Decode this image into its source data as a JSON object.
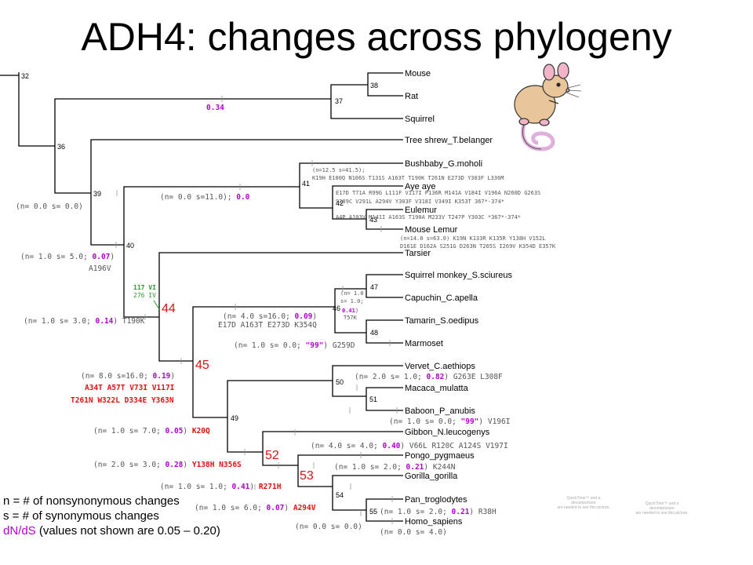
{
  "title": "ADH4:  changes across phylogeny",
  "taxa": [
    "Mouse",
    "Rat",
    "Squirrel",
    "Tree shrew_T.belanger",
    "Bushbaby_G.moholi",
    "Aye aye",
    "Eulemur",
    "Mouse Lemur",
    "Tarsier",
    "Squirrel monkey_S.sciureus",
    "Capuchin_C.apella",
    "Tamarin_S.oedipus",
    "Marmoset",
    "Vervet_C.aethiops",
    "Macaca_mulatta",
    "Baboon_P_anubis",
    "Gibbon_N.leucogenys",
    "Pongo_pygmaeus",
    "Gorilla_gorilla",
    "Pan_troglodytes",
    "Homo_sapiens"
  ],
  "nodes": [
    "32",
    "36",
    "37",
    "38",
    "39",
    "40",
    "41",
    "42",
    "43",
    "44",
    "45",
    "46",
    "47",
    "48",
    "49",
    "50",
    "51",
    "52",
    "53",
    "54",
    "55"
  ],
  "annotations": {
    "a034": "0.34",
    "a39": "(n= 0.0 s= 0.0)",
    "a40_pre": "(n= 1.0 s= 5.0; ",
    "a40_val": "0.07",
    "a40_post": ")",
    "a40_mut": "A196V",
    "a_strep_pre": "(n= 0.0 s=11.0); ",
    "a_strep_val": "0.0",
    "a_bush1": "(n=12.5 s=41.5);",
    "a_bush2": "K19H E100Q N106S T131S A163T T190K T261N E273D Y303F L336M",
    "a_aye": "E17D T71A R99G L111F V117I P136R M141A V184I V196A N260D G263S",
    "a_eul": "S289C V291L A294V Y303F V318I V349I K353T 367*-374*",
    "a_ml": "A4P A103V M141I A163S T190A M233V T247P Y303C *367*-374*",
    "a_ml2": "(n=14.0 s=63.0) K19N K133R K135R Y138H V152L",
    "a_ml3": "D161E D162A S251G D263N T265S I269V K354D E357K",
    "a_117": "117 VI",
    "a_276": "276 IV",
    "a44_pre": "(n= 1.0 s= 3.0; ",
    "a44_val": "0.14",
    "a44_post": ") T190K",
    "a46_pre": "(n= 4.0 s=16.0; ",
    "a46_val": "0.09",
    "a46_post": ")",
    "a46_mut": "E17D A163T E273D K354Q",
    "a46b1": "(n= 1.0",
    "a46b2": "s= 1.0;",
    "a46b3": "0.41",
    "a46b3p": ")",
    "a46b4": "T57K",
    "amar_pre": "(n= 1.0 s= 0.0; ",
    "amar_val": "\"99\"",
    "amar_post": ") G259D",
    "a45_pre": "(n= 8.0 s=16.0; ",
    "a45_val": "0.19",
    "a45_post": ")",
    "a45_mut1": "A34T A57T V73I V117I",
    "a45_mut2": "T261N W322L D334E Y363N",
    "a50_pre": "(n= 2.0 s= 1.0; ",
    "a50_val": "0.82",
    "a50_post": ") G263E L308F",
    "a51_pre": "(n= 1.0 s= 0.0; ",
    "a51_val": "\"99\"",
    "a51_post": ") V196I",
    "a49_pre": "(n= 1.0 s= 7.0; ",
    "a49_val": "0.05",
    "a49_post": ") ",
    "a49_mut": "K20Q",
    "agib_pre": "(n= 4.0 s= 4.0; ",
    "agib_val": "0.40",
    "agib_post": ") V66L R120C A124S V197I",
    "a52_pre": "(n= 2.0 s= 3.0; ",
    "a52_val": "0.28",
    "a52_post": ") ",
    "a52_mut": "Y138H N356S",
    "apon_pre": "(n= 1.0 s= 2.0; ",
    "apon_val": "0.21",
    "apon_post": ") K244N",
    "a53_pre": "(n= 1.0 s= 1.0; ",
    "a53_val": "0.41",
    "a53_post": ") ",
    "a53_mut": "R271H",
    "a54_pre": "(n= 1.0 s= 6.0; ",
    "a54_val": "0.07",
    "a54_post": ") ",
    "a54_mut": "A294V",
    "a55_pre": "(n= 1.0 s= 2.0; ",
    "a55_val": "0.21",
    "a55_post": ") R38H",
    "agor": "(n= 0.0 s= 0.0)",
    "ahom": "(n= 0.0 s= 4.0)"
  },
  "legend": {
    "line1": "n = # of nonsynonymous changes",
    "line2": "s = # of synonymous changes",
    "line3_key": "dN/dS",
    "line3_rest": " (values not shown are 0.05 – 0.20)"
  },
  "placeholders": {
    "line1": "QuickTime™ and a",
    "line2": "decompressor",
    "line3": "are needed to see this picture."
  },
  "colors": {
    "red": "#e01010",
    "magenta": "#b000d0",
    "green": "#2a9a2a",
    "gray": "#555555",
    "mouse_body": "#e8c69a",
    "mouse_tail": "#e0b0dc"
  },
  "icons": [
    "mouse-illustration"
  ]
}
